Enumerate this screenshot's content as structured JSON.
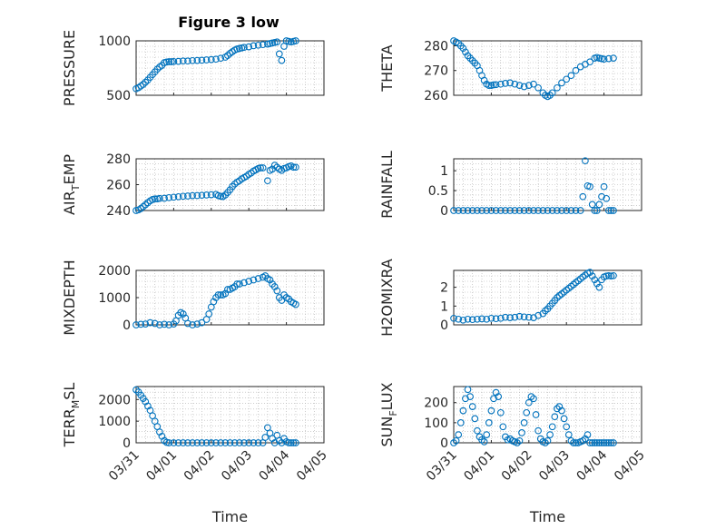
{
  "figure": {
    "title": "Figure 3 low",
    "marker_color": "#0072BD",
    "axis_color": "#262626",
    "grid_color": "#b0b0b0",
    "x_tick_labels": [
      "03/31",
      "04/01",
      "04/02",
      "04/03",
      "04/04",
      "04/05"
    ],
    "x_label": "Time"
  },
  "chart_data": [
    {
      "id": "pressure",
      "type": "scatter",
      "ylabel": "PRESSURE",
      "ylabel_parts": [
        "PRESSURE",
        "",
        ""
      ],
      "xlim": [
        0,
        4
      ],
      "ylim": [
        500,
        1000
      ],
      "yticks": [
        500,
        1000
      ],
      "ytick_labels": [
        "500",
        "1000"
      ],
      "grid": true,
      "x": [
        0.0,
        0.05,
        0.1,
        0.15,
        0.2,
        0.25,
        0.3,
        0.35,
        0.4,
        0.45,
        0.5,
        0.55,
        0.6,
        0.65,
        0.7,
        0.75,
        0.8,
        0.9,
        1.0,
        1.1,
        1.2,
        1.3,
        1.4,
        1.5,
        1.6,
        1.7,
        1.8,
        1.9,
        1.95,
        2.0,
        2.05,
        2.1,
        2.15,
        2.2,
        2.25,
        2.3,
        2.4,
        2.5,
        2.6,
        2.7,
        2.8,
        2.85,
        2.9,
        2.95,
        3.0,
        3.05,
        3.1,
        3.15,
        3.2,
        3.25,
        3.3,
        3.35,
        3.4
      ],
      "y": [
        560,
        570,
        585,
        600,
        620,
        640,
        665,
        690,
        715,
        740,
        760,
        775,
        800,
        805,
        808,
        808,
        810,
        812,
        815,
        815,
        818,
        820,
        822,
        825,
        828,
        832,
        840,
        850,
        865,
        885,
        900,
        915,
        925,
        930,
        935,
        940,
        945,
        955,
        960,
        965,
        970,
        975,
        980,
        985,
        990,
        880,
        820,
        950,
        1000,
        995,
        990,
        995,
        1000
      ]
    },
    {
      "id": "theta",
      "type": "scatter",
      "ylabel": "THETA",
      "ylabel_parts": [
        "THETA",
        "",
        ""
      ],
      "xlim": [
        0,
        4
      ],
      "ylim": [
        260,
        282
      ],
      "yticks": [
        260,
        270,
        280
      ],
      "ytick_labels": [
        "260",
        "270",
        "280"
      ],
      "grid": true,
      "x": [
        0.0,
        0.05,
        0.1,
        0.15,
        0.2,
        0.25,
        0.3,
        0.35,
        0.4,
        0.45,
        0.5,
        0.55,
        0.6,
        0.65,
        0.7,
        0.75,
        0.8,
        0.85,
        0.9,
        1.0,
        1.1,
        1.2,
        1.3,
        1.4,
        1.5,
        1.6,
        1.7,
        1.8,
        1.9,
        1.95,
        2.0,
        2.05,
        2.1,
        2.2,
        2.3,
        2.4,
        2.5,
        2.6,
        2.7,
        2.8,
        2.9,
        3.0,
        3.05,
        3.1,
        3.15,
        3.2,
        3.3,
        3.4
      ],
      "y": [
        282,
        281.5,
        281,
        280,
        279,
        277.5,
        276,
        275,
        274,
        273,
        272,
        270,
        268,
        266,
        264.5,
        264,
        264,
        264.2,
        264.3,
        264.5,
        264.8,
        265,
        264.5,
        264,
        263.5,
        264,
        264.5,
        263,
        261,
        260,
        259.5,
        260,
        261,
        263,
        265,
        266.5,
        268,
        270,
        271.5,
        272.5,
        273.5,
        275,
        275.3,
        275,
        274.8,
        274.6,
        274.8,
        275
      ]
    },
    {
      "id": "airtemp",
      "type": "scatter",
      "ylabel": "AIR_TEMP",
      "ylabel_parts": [
        "AIR",
        "T",
        "EMP"
      ],
      "xlim": [
        0,
        4
      ],
      "ylim": [
        240,
        280
      ],
      "yticks": [
        240,
        260,
        280
      ],
      "ytick_labels": [
        "240",
        "260",
        "280"
      ],
      "grid": true,
      "x": [
        0.0,
        0.05,
        0.1,
        0.15,
        0.2,
        0.25,
        0.3,
        0.35,
        0.4,
        0.45,
        0.5,
        0.6,
        0.7,
        0.8,
        0.9,
        1.0,
        1.1,
        1.2,
        1.3,
        1.4,
        1.5,
        1.6,
        1.7,
        1.75,
        1.8,
        1.85,
        1.9,
        1.95,
        2.0,
        2.05,
        2.1,
        2.15,
        2.2,
        2.25,
        2.3,
        2.35,
        2.4,
        2.45,
        2.5,
        2.55,
        2.6,
        2.65,
        2.7,
        2.8,
        2.85,
        2.9,
        2.95,
        3.0,
        3.05,
        3.1,
        3.15,
        3.2,
        3.25,
        3.3,
        3.35,
        3.4
      ],
      "y": [
        240,
        240.5,
        241.5,
        243,
        244.5,
        246,
        247.5,
        248.5,
        249,
        249,
        249.3,
        249.5,
        250,
        250.3,
        250.7,
        251,
        251.2,
        251.5,
        251.6,
        251.8,
        252,
        252.2,
        252.5,
        251.5,
        251,
        250.8,
        252,
        254,
        256,
        258.5,
        260.5,
        262,
        263,
        264.5,
        265.5,
        266.5,
        268,
        269,
        270.5,
        271.5,
        272.5,
        273,
        273,
        263,
        271,
        272,
        275,
        273.5,
        272,
        271,
        272.5,
        273,
        274,
        274.5,
        273.5,
        273.5
      ]
    },
    {
      "id": "rainfall",
      "type": "scatter",
      "ylabel": "RAINFALL",
      "ylabel_parts": [
        "RAINFALL",
        "",
        ""
      ],
      "xlim": [
        0,
        4
      ],
      "ylim": [
        0,
        1.3
      ],
      "yticks": [
        0,
        0.5,
        1
      ],
      "ytick_labels": [
        "0",
        "0.5",
        "1"
      ],
      "grid": true,
      "x": [
        0.0,
        0.1,
        0.2,
        0.3,
        0.4,
        0.5,
        0.6,
        0.7,
        0.8,
        0.9,
        1.0,
        1.1,
        1.2,
        1.3,
        1.4,
        1.5,
        1.6,
        1.7,
        1.8,
        1.9,
        2.0,
        2.1,
        2.2,
        2.3,
        2.4,
        2.5,
        2.6,
        2.7,
        2.75,
        2.8,
        2.85,
        2.9,
        2.95,
        3.0,
        3.05,
        3.1,
        3.15,
        3.2,
        3.25,
        3.3,
        3.35,
        3.4
      ],
      "y": [
        0,
        0,
        0,
        0,
        0,
        0,
        0,
        0,
        0,
        0,
        0,
        0,
        0,
        0,
        0,
        0,
        0,
        0,
        0,
        0,
        0,
        0,
        0,
        0,
        0,
        0,
        0,
        0,
        0.35,
        1.25,
        0.62,
        0.6,
        0.15,
        0,
        0,
        0.15,
        0.35,
        0.6,
        0.3,
        0,
        0,
        0
      ]
    },
    {
      "id": "mixdepth",
      "type": "scatter",
      "ylabel": "MIXDEPTH",
      "ylabel_parts": [
        "MIXDEPTH",
        "",
        ""
      ],
      "xlim": [
        0,
        4
      ],
      "ylim": [
        0,
        2000
      ],
      "yticks": [
        0,
        1000,
        2000
      ],
      "ytick_labels": [
        "0",
        "1000",
        "2000"
      ],
      "grid": true,
      "x": [
        0.0,
        0.1,
        0.2,
        0.3,
        0.4,
        0.5,
        0.6,
        0.7,
        0.8,
        0.85,
        0.9,
        0.95,
        1.0,
        1.05,
        1.1,
        1.2,
        1.3,
        1.4,
        1.5,
        1.55,
        1.6,
        1.65,
        1.7,
        1.75,
        1.8,
        1.85,
        1.9,
        1.95,
        2.0,
        2.05,
        2.1,
        2.15,
        2.2,
        2.3,
        2.4,
        2.5,
        2.6,
        2.7,
        2.75,
        2.8,
        2.85,
        2.9,
        2.95,
        3.0,
        3.05,
        3.1,
        3.15,
        3.2,
        3.25,
        3.3,
        3.35,
        3.4
      ],
      "y": [
        0,
        20,
        30,
        80,
        50,
        0,
        20,
        0,
        30,
        150,
        350,
        450,
        400,
        250,
        50,
        0,
        30,
        80,
        200,
        400,
        650,
        850,
        1000,
        1100,
        1100,
        1100,
        1150,
        1300,
        1300,
        1350,
        1400,
        1500,
        1500,
        1550,
        1600,
        1650,
        1700,
        1750,
        1800,
        1700,
        1650,
        1500,
        1400,
        1250,
        1000,
        900,
        1100,
        1000,
        950,
        850,
        800,
        750
      ]
    },
    {
      "id": "h2omixra",
      "type": "scatter",
      "ylabel": "H2OMIXRA",
      "ylabel_parts": [
        "H2OMIXRA",
        "",
        ""
      ],
      "xlim": [
        0,
        4
      ],
      "ylim": [
        0,
        2.9
      ],
      "yticks": [
        0,
        1,
        2
      ],
      "ytick_labels": [
        "0",
        "1",
        "2"
      ],
      "grid": true,
      "x": [
        0.0,
        0.1,
        0.2,
        0.3,
        0.4,
        0.5,
        0.6,
        0.7,
        0.8,
        0.9,
        1.0,
        1.1,
        1.2,
        1.3,
        1.4,
        1.5,
        1.6,
        1.7,
        1.8,
        1.9,
        1.95,
        2.0,
        2.05,
        2.1,
        2.15,
        2.2,
        2.25,
        2.3,
        2.35,
        2.4,
        2.45,
        2.5,
        2.55,
        2.6,
        2.65,
        2.7,
        2.75,
        2.8,
        2.85,
        2.9,
        2.95,
        3.0,
        3.05,
        3.1,
        3.15,
        3.2,
        3.25,
        3.3,
        3.35,
        3.4
      ],
      "y": [
        0.35,
        0.3,
        0.25,
        0.3,
        0.28,
        0.3,
        0.32,
        0.3,
        0.35,
        0.33,
        0.35,
        0.4,
        0.38,
        0.4,
        0.45,
        0.42,
        0.4,
        0.38,
        0.5,
        0.6,
        0.75,
        0.85,
        1.0,
        1.15,
        1.3,
        1.45,
        1.55,
        1.65,
        1.75,
        1.85,
        1.95,
        2.05,
        2.15,
        2.25,
        2.35,
        2.45,
        2.55,
        2.65,
        2.75,
        2.8,
        2.6,
        2.4,
        2.2,
        2.0,
        2.4,
        2.55,
        2.6,
        2.62,
        2.6,
        2.62
      ]
    },
    {
      "id": "terrmsl",
      "type": "scatter",
      "ylabel": "TERR_MSL",
      "ylabel_parts": [
        "TERR",
        "M",
        "SL"
      ],
      "xlim": [
        0,
        4
      ],
      "ylim": [
        0,
        2600
      ],
      "yticks": [
        0,
        1000,
        2000
      ],
      "ytick_labels": [
        "0",
        "1000",
        "2000"
      ],
      "grid": true,
      "x": [
        0.0,
        0.05,
        0.1,
        0.15,
        0.2,
        0.25,
        0.3,
        0.35,
        0.4,
        0.45,
        0.5,
        0.55,
        0.6,
        0.65,
        0.7,
        0.8,
        0.9,
        1.0,
        1.1,
        1.2,
        1.3,
        1.4,
        1.5,
        1.6,
        1.7,
        1.8,
        1.9,
        2.0,
        2.1,
        2.2,
        2.3,
        2.4,
        2.5,
        2.6,
        2.7,
        2.75,
        2.8,
        2.85,
        2.9,
        2.95,
        3.0,
        3.05,
        3.1,
        3.15,
        3.2,
        3.25,
        3.3,
        3.35,
        3.4
      ],
      "y": [
        2450,
        2350,
        2200,
        2050,
        1900,
        1700,
        1500,
        1250,
        1000,
        750,
        500,
        300,
        100,
        20,
        0,
        0,
        0,
        0,
        0,
        0,
        0,
        0,
        0,
        0,
        0,
        0,
        0,
        0,
        0,
        0,
        0,
        0,
        0,
        0,
        0,
        250,
        700,
        450,
        200,
        0,
        350,
        100,
        0,
        200,
        50,
        0,
        0,
        0,
        0
      ]
    },
    {
      "id": "sunflux",
      "type": "scatter",
      "ylabel": "SUN_FLUX",
      "ylabel_parts": [
        "SUN",
        "F",
        "LUX"
      ],
      "xlim": [
        0,
        4
      ],
      "ylim": [
        0,
        280
      ],
      "yticks": [
        0,
        100,
        200
      ],
      "ytick_labels": [
        "0",
        "100",
        "200"
      ],
      "grid": true,
      "x": [
        0.0,
        0.05,
        0.1,
        0.15,
        0.2,
        0.25,
        0.3,
        0.35,
        0.4,
        0.45,
        0.5,
        0.55,
        0.6,
        0.65,
        0.7,
        0.75,
        0.8,
        0.85,
        0.9,
        0.95,
        1.0,
        1.05,
        1.1,
        1.15,
        1.2,
        1.25,
        1.3,
        1.35,
        1.4,
        1.45,
        1.5,
        1.55,
        1.6,
        1.65,
        1.7,
        1.75,
        1.8,
        1.85,
        1.9,
        1.95,
        2.0,
        2.05,
        2.1,
        2.15,
        2.2,
        2.25,
        2.3,
        2.35,
        2.4,
        2.45,
        2.5,
        2.55,
        2.6,
        2.65,
        2.7,
        2.75,
        2.8,
        2.85,
        2.9,
        2.95,
        3.0,
        3.05,
        3.1,
        3.15,
        3.2,
        3.25,
        3.3,
        3.35,
        3.4
      ],
      "y": [
        0,
        10,
        40,
        100,
        160,
        220,
        265,
        230,
        180,
        120,
        60,
        30,
        15,
        5,
        40,
        100,
        160,
        220,
        250,
        230,
        150,
        80,
        30,
        15,
        20,
        10,
        5,
        0,
        10,
        50,
        100,
        150,
        200,
        230,
        220,
        140,
        60,
        20,
        5,
        0,
        10,
        40,
        80,
        130,
        170,
        180,
        160,
        120,
        80,
        40,
        10,
        0,
        0,
        0,
        5,
        10,
        20,
        40,
        0,
        0,
        0,
        0,
        0,
        0,
        0,
        0,
        0,
        0,
        0
      ]
    }
  ]
}
